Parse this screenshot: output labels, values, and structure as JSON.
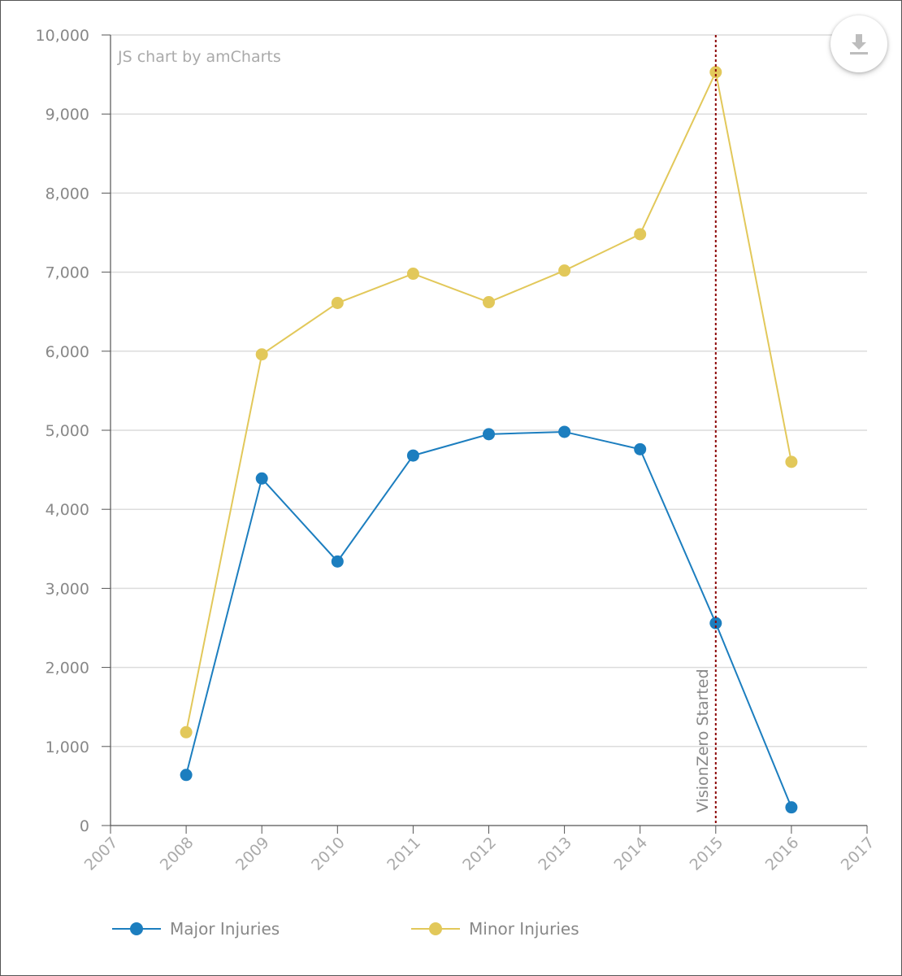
{
  "credit": "JS chart by amCharts",
  "chart_data": {
    "type": "line",
    "x": [
      "2007",
      "2008",
      "2009",
      "2010",
      "2011",
      "2012",
      "2013",
      "2014",
      "2015",
      "2016",
      "2017"
    ],
    "ylim": [
      0,
      10000
    ],
    "yticks": [
      0,
      1000,
      2000,
      3000,
      4000,
      5000,
      6000,
      7000,
      8000,
      9000,
      10000
    ],
    "ytick_labels": [
      "0",
      "1,000",
      "2,000",
      "3,000",
      "4,000",
      "5,000",
      "6,000",
      "7,000",
      "8,000",
      "9,000",
      "10,000"
    ],
    "grid": true,
    "legend_position": "bottom-left",
    "series": [
      {
        "name": "Major Injuries",
        "color": "#1c7ebf",
        "values": [
          null,
          640,
          4390,
          3340,
          4680,
          4950,
          4980,
          4760,
          2560,
          230,
          null
        ]
      },
      {
        "name": "Minor Injuries",
        "color": "#e2c85a",
        "values": [
          null,
          1180,
          5960,
          6610,
          6980,
          6620,
          7020,
          7480,
          9530,
          4600,
          null
        ]
      }
    ],
    "guide": {
      "x": "2015",
      "label": "VisionZero Started",
      "color": "#8b0000"
    }
  },
  "download_button": {
    "icon": "download-icon"
  }
}
